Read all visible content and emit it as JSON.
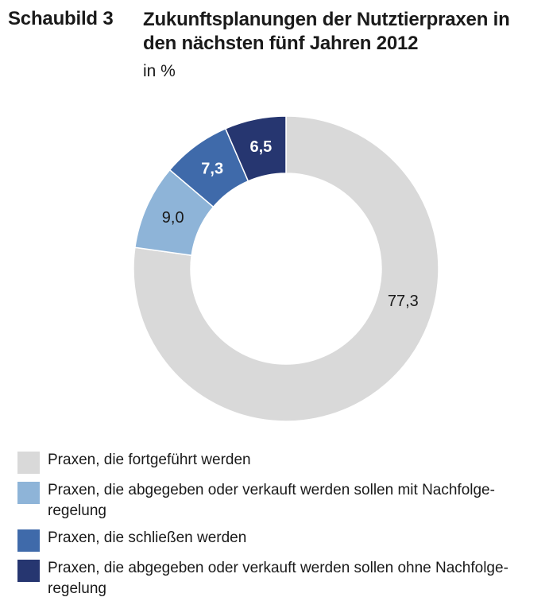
{
  "header": {
    "figure_number": "Schaubild 3",
    "title": "Zukunftsplanungen der Nutztierpraxen in den nächsten fünf Jahren 2012",
    "unit": "in %"
  },
  "chart_data": {
    "type": "pie",
    "variant": "donut",
    "title": "Zukunftsplanungen der Nutztierpraxen in den nächsten fünf Jahren 2012",
    "unit": "in %",
    "series": [
      {
        "name": "Praxen, die fortgeführt werden",
        "value": 77.3,
        "label": "77,3",
        "color": "#d9d9d9",
        "label_color": "#1a1a1a"
      },
      {
        "name": "Praxen, die abgegeben oder verkauft werden sollen mit Nachfolge-regelung",
        "value": 9.0,
        "label": "9,0",
        "color": "#8eb4d8",
        "label_color": "#1a1a1a"
      },
      {
        "name": "Praxen, die schließen werden",
        "value": 7.3,
        "label": "7,3",
        "color": "#3f6aaa",
        "label_color": "#ffffff"
      },
      {
        "name": "Praxen, die abgegeben oder verkauft werden sollen ohne Nachfolge-regelung",
        "value": 6.5,
        "label": "6,5",
        "color": "#263670",
        "label_color": "#ffffff"
      }
    ],
    "legend_position": "bottom"
  },
  "legend": {
    "items": [
      {
        "label": "Praxen, die fortgeführt werden"
      },
      {
        "label": "Praxen, die abgegeben oder verkauft werden sollen mit Nachfolge-regelung"
      },
      {
        "label": "Praxen, die schließen werden"
      },
      {
        "label": "Praxen, die abgegeben oder verkauft werden sollen ohne Nachfolge-regelung"
      }
    ]
  }
}
